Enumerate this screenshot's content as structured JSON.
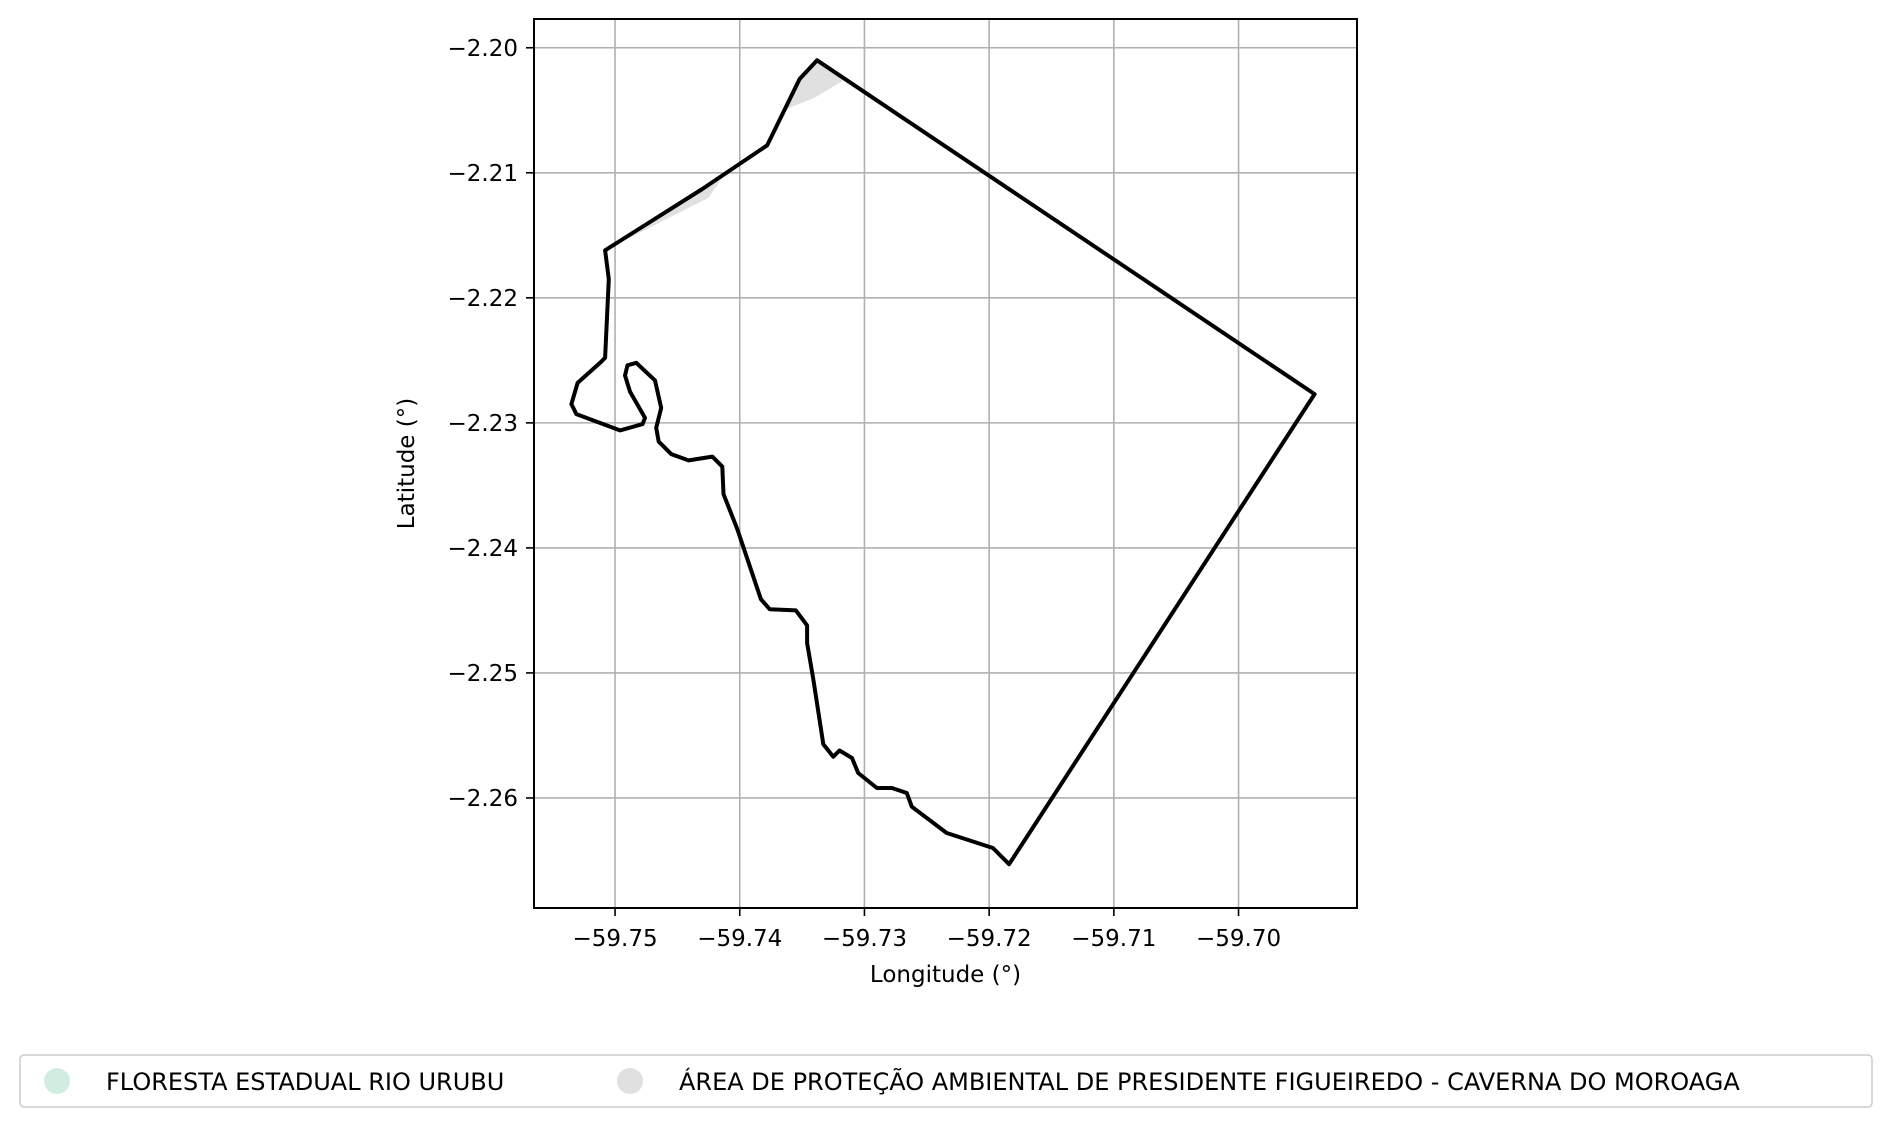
{
  "map": {
    "xlabel": "Longitude (°)",
    "ylabel": "Latitude (°)",
    "xlim": [
      -59.7565,
      -59.6905
    ],
    "ylim": [
      -2.2688,
      -2.1977
    ],
    "x_ticks": [
      -59.75,
      -59.74,
      -59.73,
      -59.72,
      -59.71,
      -59.7
    ],
    "x_tick_labels": [
      "−59.75",
      "−59.74",
      "−59.73",
      "−59.72",
      "−59.71",
      "−59.70"
    ],
    "y_ticks": [
      -2.2,
      -2.21,
      -2.22,
      -2.23,
      -2.24,
      -2.25,
      -2.26
    ],
    "y_tick_labels": [
      "−2.20",
      "−2.21",
      "−2.22",
      "−2.23",
      "−2.24",
      "−2.25",
      "−2.26"
    ],
    "grid": true,
    "colors": {
      "boundary": "#000000",
      "floresta": "#d0ede0",
      "apa": "#e0e0e0",
      "grid": "#b0b0b0"
    },
    "boundary": [
      [
        -59.7338,
        -2.201
      ],
      [
        -59.7352,
        -2.2025
      ],
      [
        -59.7378,
        -2.2078
      ],
      [
        -59.743,
        -2.2113
      ],
      [
        -59.7508,
        -2.2162
      ],
      [
        -59.7505,
        -2.2185
      ],
      [
        -59.7508,
        -2.2248
      ],
      [
        -59.7512,
        -2.2252
      ],
      [
        -59.753,
        -2.2268
      ],
      [
        -59.7535,
        -2.2285
      ],
      [
        -59.7531,
        -2.2293
      ],
      [
        -59.7496,
        -2.2306
      ],
      [
        -59.7478,
        -2.2301
      ],
      [
        -59.7476,
        -2.2296
      ],
      [
        -59.7488,
        -2.2275
      ],
      [
        -59.7492,
        -2.2262
      ],
      [
        -59.749,
        -2.2254
      ],
      [
        -59.7483,
        -2.2252
      ],
      [
        -59.7468,
        -2.2266
      ],
      [
        -59.7463,
        -2.2288
      ],
      [
        -59.7467,
        -2.2304
      ],
      [
        -59.7465,
        -2.2315
      ],
      [
        -59.7455,
        -2.2325
      ],
      [
        -59.7441,
        -2.233
      ],
      [
        -59.7422,
        -2.2327
      ],
      [
        -59.7414,
        -2.2335
      ],
      [
        -59.7413,
        -2.2357
      ],
      [
        -59.7402,
        -2.2385
      ],
      [
        -59.7383,
        -2.2441
      ],
      [
        -59.7376,
        -2.2449
      ],
      [
        -59.7355,
        -2.245
      ],
      [
        -59.7346,
        -2.2462
      ],
      [
        -59.7346,
        -2.2476
      ],
      [
        -59.7341,
        -2.2505
      ],
      [
        -59.7333,
        -2.2557
      ],
      [
        -59.7325,
        -2.2567
      ],
      [
        -59.732,
        -2.2562
      ],
      [
        -59.731,
        -2.2568
      ],
      [
        -59.7305,
        -2.258
      ],
      [
        -59.729,
        -2.2592
      ],
      [
        -59.7278,
        -2.2592
      ],
      [
        -59.7266,
        -2.2596
      ],
      [
        -59.7262,
        -2.2607
      ],
      [
        -59.7234,
        -2.2628
      ],
      [
        -59.7197,
        -2.264
      ],
      [
        -59.7184,
        -2.2653
      ],
      [
        -59.6939,
        -2.2277
      ],
      [
        -59.7338,
        -2.201
      ]
    ],
    "apa_area": [
      [
        -59.7338,
        -2.201
      ],
      [
        -59.7315,
        -2.2025
      ],
      [
        -59.734,
        -2.204
      ],
      [
        -59.7365,
        -2.205
      ],
      [
        -59.738,
        -2.2078
      ],
      [
        -59.741,
        -2.2098
      ],
      [
        -59.7425,
        -2.212
      ],
      [
        -59.7508,
        -2.2162
      ],
      [
        -59.743,
        -2.2113
      ],
      [
        -59.7378,
        -2.2078
      ],
      [
        -59.7352,
        -2.2025
      ],
      [
        -59.7338,
        -2.201
      ]
    ]
  },
  "legend": {
    "items": [
      {
        "label": "FLORESTA ESTADUAL RIO URUBU",
        "color": "#d0ede0"
      },
      {
        "label": "ÁREA DE PROTEÇÃO AMBIENTAL DE PRESIDENTE FIGUEIREDO - CAVERNA DO MOROAGA",
        "color": "#e0e0e0"
      }
    ]
  }
}
